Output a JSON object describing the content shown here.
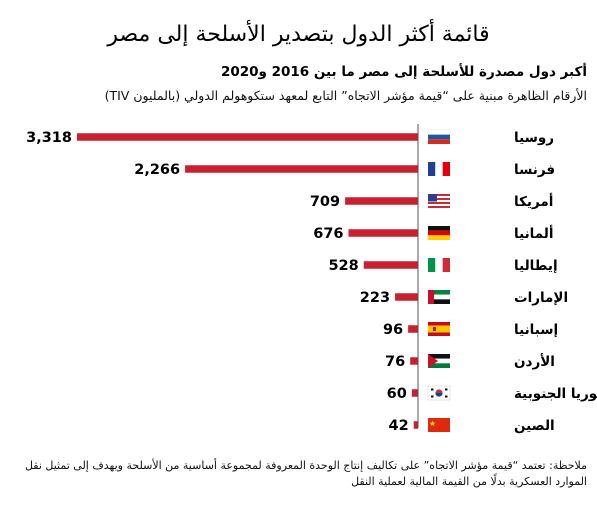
{
  "header": {
    "title": "قائمة أكثر الدول بتصدير الأسلحة إلى مصر",
    "subtitle": "أكبر دول مصدرة للأسلحة إلى مصر ما بين 2016 و2020",
    "description": "الأرقام الظاهرة مبنية على “قيمة مؤشر الاتجاه” التابع لمعهد ستكوهولم الدولي (بالمليون TIV)"
  },
  "note": "ملاحظة: تعتمد “قيمة مؤشر الاتجاه” على تكاليف إنتاج الوحدة المعروفة لمجموعة أساسية من الأسلحة ويهدف إلى تمثيل نقل الموارد العسكرية بدلًا من القيمة المالية لعملية النقل",
  "chart_data": {
    "type": "bar",
    "orientation": "horizontal",
    "categories": [
      "روسيا",
      "فرنسا",
      "أمريكا",
      "ألمانيا",
      "إيطاليا",
      "الإمارات",
      "إسبانيا",
      "الأردن",
      "كوريا الجنوبية",
      "الصين"
    ],
    "values": [
      3318,
      2266,
      709,
      676,
      528,
      223,
      96,
      76,
      60,
      42
    ],
    "value_labels": [
      "3,318",
      "2,266",
      "709",
      "676",
      "528",
      "223",
      "96",
      "76",
      "60",
      "42"
    ],
    "flags": [
      "flag-russia",
      "flag-france",
      "flag-usa",
      "flag-germany",
      "flag-italy",
      "flag-uae",
      "flag-spain",
      "flag-jordan",
      "flag-south-korea",
      "flag-china"
    ],
    "bar_color": "#c8202f",
    "axis_color": "#555555",
    "xlim": [
      0,
      3318
    ],
    "grid": false,
    "legend": "none"
  }
}
